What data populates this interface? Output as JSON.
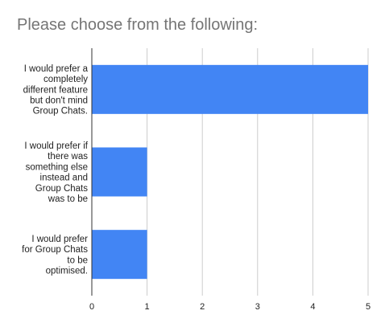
{
  "chart_data": {
    "type": "bar",
    "orientation": "horizontal",
    "title": "Please choose from the following:",
    "xlabel": "",
    "ylabel": "",
    "categories": [
      [
        "I would prefer a",
        "completely",
        "different feature",
        "but don't mind",
        "Group Chats."
      ],
      [
        "I would prefer if",
        "there was",
        "something else",
        "instead and",
        "Group Chats",
        "was to be"
      ],
      [
        "I would prefer",
        "for Group Chats",
        "to be",
        "optimised."
      ]
    ],
    "values": [
      5,
      1,
      1
    ],
    "xlim": [
      0,
      5
    ],
    "x_ticks": [
      "0",
      "1",
      "2",
      "3",
      "4",
      "5"
    ],
    "grid": true,
    "legend": "none",
    "bar_color": "#4285f4",
    "grid_color": "#cccccc",
    "axis_color": "#333333"
  }
}
